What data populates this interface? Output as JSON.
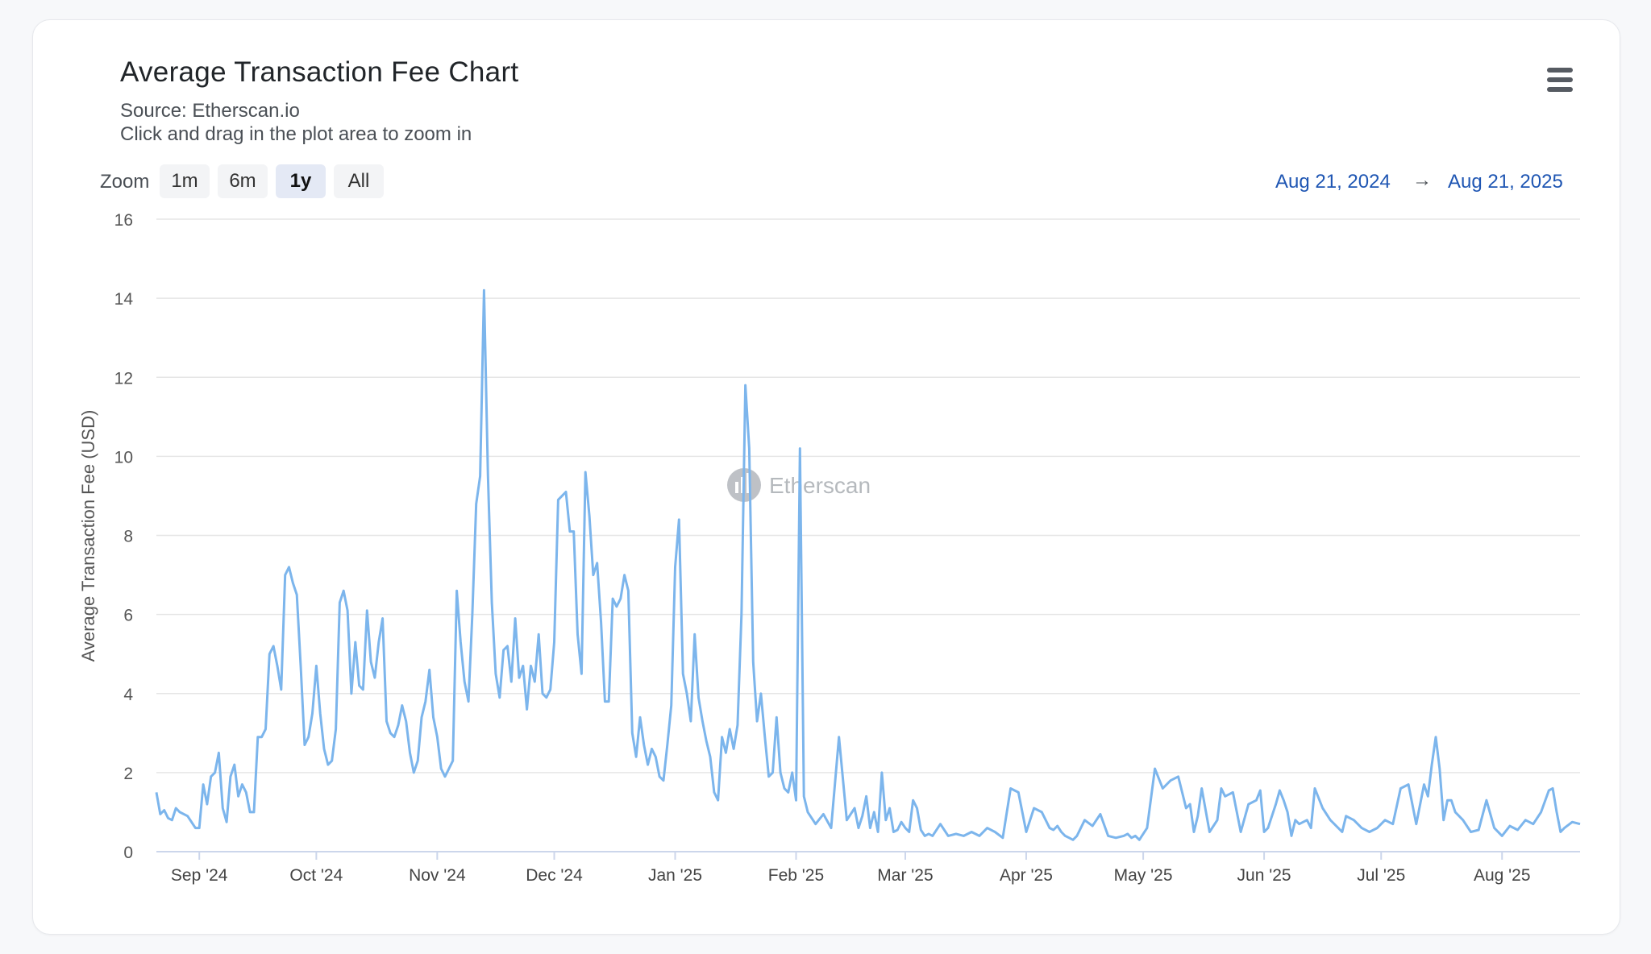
{
  "header": {
    "title": "Average Transaction Fee Chart",
    "source": "Source: Etherscan.io",
    "hint": "Click and drag in the plot area to zoom in"
  },
  "toolbar": {
    "menu_icon": "hamburger-menu-icon",
    "zoom_label": "Zoom",
    "zoom_buttons": [
      "1m",
      "6m",
      "1y",
      "All"
    ],
    "zoom_selected": "1y",
    "range_from": "Aug 21, 2024",
    "range_arrow": "→",
    "range_to": "Aug 21, 2025"
  },
  "watermark": {
    "text": "Etherscan",
    "icon": "etherscan-logo-icon"
  },
  "colors": {
    "line": "#7cb5ec",
    "accent": "#1f56b3",
    "grid": "#e6e6e6"
  },
  "chart_data": {
    "type": "line",
    "title": "Average Transaction Fee Chart",
    "subtitle": "Source: Etherscan.io",
    "xlabel": "",
    "ylabel": "Average Transaction Fee (USD)",
    "ylim": [
      0,
      16
    ],
    "yticks": [
      0,
      2,
      4,
      6,
      8,
      10,
      12,
      14,
      16
    ],
    "xlim": [
      "2024-08-21",
      "2025-08-21"
    ],
    "xticks": [
      {
        "date": "2024-09-01",
        "label": "Sep '24"
      },
      {
        "date": "2024-10-01",
        "label": "Oct '24"
      },
      {
        "date": "2024-11-01",
        "label": "Nov '24"
      },
      {
        "date": "2024-12-01",
        "label": "Dec '24"
      },
      {
        "date": "2025-01-01",
        "label": "Jan '25"
      },
      {
        "date": "2025-02-01",
        "label": "Feb '25"
      },
      {
        "date": "2025-03-01",
        "label": "Mar '25"
      },
      {
        "date": "2025-04-01",
        "label": "Apr '25"
      },
      {
        "date": "2025-05-01",
        "label": "May '25"
      },
      {
        "date": "2025-06-01",
        "label": "Jun '25"
      },
      {
        "date": "2025-07-01",
        "label": "Jul '25"
      },
      {
        "date": "2025-08-01",
        "label": "Aug '25"
      }
    ],
    "grid": true,
    "legend": "none",
    "series": [
      {
        "x": [
          "2024-08-21",
          "2024-08-22",
          "2024-08-23",
          "2024-08-24",
          "2024-08-25",
          "2024-08-26",
          "2024-08-27",
          "2024-08-29",
          "2024-08-31",
          "2024-09-01",
          "2024-09-02",
          "2024-09-03",
          "2024-09-04",
          "2024-09-05",
          "2024-09-06",
          "2024-09-07",
          "2024-09-08",
          "2024-09-09",
          "2024-09-10",
          "2024-09-11",
          "2024-09-12",
          "2024-09-13",
          "2024-09-14",
          "2024-09-15",
          "2024-09-16",
          "2024-09-17",
          "2024-09-18",
          "2024-09-19",
          "2024-09-20",
          "2024-09-21",
          "2024-09-22",
          "2024-09-23",
          "2024-09-24",
          "2024-09-25",
          "2024-09-26",
          "2024-09-27",
          "2024-09-28",
          "2024-09-29",
          "2024-09-30",
          "2024-10-01",
          "2024-10-02",
          "2024-10-03",
          "2024-10-04",
          "2024-10-05",
          "2024-10-06",
          "2024-10-07",
          "2024-10-08",
          "2024-10-09",
          "2024-10-10",
          "2024-10-11",
          "2024-10-12",
          "2024-10-13",
          "2024-10-14",
          "2024-10-15",
          "2024-10-16",
          "2024-10-17",
          "2024-10-18",
          "2024-10-19",
          "2024-10-20",
          "2024-10-21",
          "2024-10-22",
          "2024-10-23",
          "2024-10-24",
          "2024-10-25",
          "2024-10-26",
          "2024-10-27",
          "2024-10-28",
          "2024-10-29",
          "2024-10-30",
          "2024-10-31",
          "2024-11-01",
          "2024-11-02",
          "2024-11-03",
          "2024-11-04",
          "2024-11-05",
          "2024-11-06",
          "2024-11-07",
          "2024-11-08",
          "2024-11-09",
          "2024-11-10",
          "2024-11-11",
          "2024-11-12",
          "2024-11-13",
          "2024-11-14",
          "2024-11-15",
          "2024-11-16",
          "2024-11-17",
          "2024-11-18",
          "2024-11-19",
          "2024-11-20",
          "2024-11-21",
          "2024-11-22",
          "2024-11-23",
          "2024-11-24",
          "2024-11-25",
          "2024-11-26",
          "2024-11-27",
          "2024-11-28",
          "2024-11-29",
          "2024-11-30",
          "2024-12-01",
          "2024-12-02",
          "2024-12-03",
          "2024-12-04",
          "2024-12-05",
          "2024-12-06",
          "2024-12-07",
          "2024-12-08",
          "2024-12-09",
          "2024-12-10",
          "2024-12-11",
          "2024-12-12",
          "2024-12-13",
          "2024-12-14",
          "2024-12-15",
          "2024-12-16",
          "2024-12-17",
          "2024-12-18",
          "2024-12-19",
          "2024-12-20",
          "2024-12-21",
          "2024-12-22",
          "2024-12-23",
          "2024-12-24",
          "2024-12-25",
          "2024-12-26",
          "2024-12-27",
          "2024-12-28",
          "2024-12-29",
          "2024-12-30",
          "2024-12-31",
          "2025-01-01",
          "2025-01-02",
          "2025-01-03",
          "2025-01-04",
          "2025-01-05",
          "2025-01-06",
          "2025-01-07",
          "2025-01-08",
          "2025-01-09",
          "2025-01-10",
          "2025-01-11",
          "2025-01-12",
          "2025-01-13",
          "2025-01-14",
          "2025-01-15",
          "2025-01-16",
          "2025-01-17",
          "2025-01-18",
          "2025-01-19",
          "2025-01-20",
          "2025-01-21",
          "2025-01-22",
          "2025-01-23",
          "2025-01-24",
          "2025-01-25",
          "2025-01-26",
          "2025-01-27",
          "2025-01-28",
          "2025-01-29",
          "2025-01-30",
          "2025-01-31",
          "2025-02-01",
          "2025-02-02",
          "2025-02-03",
          "2025-02-04",
          "2025-02-06",
          "2025-02-08",
          "2025-02-10",
          "2025-02-12",
          "2025-02-14",
          "2025-02-16",
          "2025-02-17",
          "2025-02-18",
          "2025-02-19",
          "2025-02-20",
          "2025-02-21",
          "2025-02-22",
          "2025-02-23",
          "2025-02-24",
          "2025-02-25",
          "2025-02-26",
          "2025-02-27",
          "2025-02-28",
          "2025-03-01",
          "2025-03-02",
          "2025-03-03",
          "2025-03-04",
          "2025-03-05",
          "2025-03-06",
          "2025-03-07",
          "2025-03-08",
          "2025-03-10",
          "2025-03-12",
          "2025-03-14",
          "2025-03-16",
          "2025-03-18",
          "2025-03-20",
          "2025-03-22",
          "2025-03-24",
          "2025-03-26",
          "2025-03-28",
          "2025-03-30",
          "2025-04-01",
          "2025-04-03",
          "2025-04-05",
          "2025-04-07",
          "2025-04-08",
          "2025-04-09",
          "2025-04-10",
          "2025-04-11",
          "2025-04-12",
          "2025-04-13",
          "2025-04-14",
          "2025-04-16",
          "2025-04-18",
          "2025-04-20",
          "2025-04-22",
          "2025-04-24",
          "2025-04-26",
          "2025-04-27",
          "2025-04-28",
          "2025-04-29",
          "2025-04-30",
          "2025-05-02",
          "2025-05-04",
          "2025-05-06",
          "2025-05-08",
          "2025-05-10",
          "2025-05-12",
          "2025-05-13",
          "2025-05-14",
          "2025-05-15",
          "2025-05-16",
          "2025-05-18",
          "2025-05-20",
          "2025-05-21",
          "2025-05-22",
          "2025-05-24",
          "2025-05-26",
          "2025-05-28",
          "2025-05-30",
          "2025-05-31",
          "2025-06-01",
          "2025-06-02",
          "2025-06-04",
          "2025-06-05",
          "2025-06-06",
          "2025-06-07",
          "2025-06-08",
          "2025-06-09",
          "2025-06-10",
          "2025-06-12",
          "2025-06-13",
          "2025-06-14",
          "2025-06-16",
          "2025-06-18",
          "2025-06-20",
          "2025-06-21",
          "2025-06-22",
          "2025-06-24",
          "2025-06-26",
          "2025-06-28",
          "2025-06-30",
          "2025-07-02",
          "2025-07-04",
          "2025-07-06",
          "2025-07-08",
          "2025-07-10",
          "2025-07-12",
          "2025-07-13",
          "2025-07-14",
          "2025-07-15",
          "2025-07-16",
          "2025-07-17",
          "2025-07-18",
          "2025-07-19",
          "2025-07-20",
          "2025-07-22",
          "2025-07-24",
          "2025-07-26",
          "2025-07-28",
          "2025-07-30",
          "2025-08-01",
          "2025-08-03",
          "2025-08-05",
          "2025-08-07",
          "2025-08-09",
          "2025-08-11",
          "2025-08-13",
          "2025-08-14",
          "2025-08-15",
          "2025-08-16",
          "2025-08-17",
          "2025-08-19",
          "2025-08-21"
        ],
        "values": [
          1.5,
          0.95,
          1.05,
          0.85,
          0.8,
          1.1,
          1.0,
          0.9,
          0.6,
          0.6,
          1.7,
          1.2,
          1.9,
          2.0,
          2.5,
          1.1,
          0.75,
          1.9,
          2.2,
          1.4,
          1.7,
          1.5,
          1.0,
          1.0,
          2.9,
          2.9,
          3.1,
          5.0,
          5.2,
          4.7,
          4.1,
          7.0,
          7.2,
          6.8,
          6.5,
          4.7,
          2.7,
          2.9,
          3.5,
          4.7,
          3.5,
          2.6,
          2.2,
          2.3,
          3.1,
          6.3,
          6.6,
          6.1,
          4.0,
          5.3,
          4.2,
          4.1,
          6.1,
          4.8,
          4.4,
          5.3,
          5.9,
          3.3,
          3.0,
          2.9,
          3.2,
          3.7,
          3.3,
          2.5,
          2.0,
          2.3,
          3.4,
          3.8,
          4.6,
          3.4,
          2.9,
          2.1,
          1.9,
          2.1,
          2.3,
          6.6,
          5.3,
          4.3,
          3.8,
          6.0,
          8.8,
          9.5,
          14.2,
          9.5,
          6.3,
          4.5,
          3.9,
          5.1,
          5.2,
          4.3,
          5.9,
          4.4,
          4.7,
          3.6,
          4.7,
          4.3,
          5.5,
          4.0,
          3.9,
          4.1,
          5.3,
          8.9,
          9.0,
          9.1,
          8.1,
          8.1,
          5.5,
          4.5,
          9.6,
          8.5,
          7.0,
          7.3,
          5.8,
          3.8,
          3.8,
          6.4,
          6.2,
          6.4,
          7.0,
          6.6,
          3.0,
          2.4,
          3.4,
          2.7,
          2.2,
          2.6,
          2.4,
          1.9,
          1.8,
          2.7,
          3.7,
          7.2,
          8.4,
          4.5,
          4.0,
          3.3,
          5.5,
          3.9,
          3.3,
          2.8,
          2.4,
          1.5,
          1.3,
          2.9,
          2.5,
          3.1,
          2.6,
          3.2,
          6.0,
          11.8,
          10.2,
          4.8,
          3.3,
          4.0,
          2.9,
          1.9,
          2.0,
          3.4,
          2.0,
          1.6,
          1.5,
          2.0,
          1.3,
          10.2,
          1.4,
          1.0,
          0.7,
          0.95,
          0.6,
          2.9,
          0.8,
          1.1,
          0.6,
          0.9,
          1.4,
          0.6,
          1.0,
          0.5,
          2.0,
          0.8,
          1.1,
          0.5,
          0.55,
          0.75,
          0.6,
          0.5,
          1.3,
          1.1,
          0.55,
          0.4,
          0.45,
          0.4,
          0.7,
          0.4,
          0.45,
          0.4,
          0.5,
          0.4,
          0.6,
          0.5,
          0.35,
          1.6,
          1.5,
          0.5,
          1.1,
          1.0,
          0.6,
          0.55,
          0.65,
          0.5,
          0.4,
          0.35,
          0.3,
          0.4,
          0.8,
          0.65,
          0.95,
          0.4,
          0.35,
          0.4,
          0.45,
          0.35,
          0.4,
          0.3,
          0.6,
          2.1,
          1.6,
          1.8,
          1.9,
          1.1,
          1.2,
          0.5,
          0.9,
          1.6,
          0.5,
          0.8,
          1.6,
          1.4,
          1.5,
          0.5,
          1.2,
          1.3,
          1.55,
          0.5,
          0.6,
          1.2,
          1.55,
          1.3,
          1.0,
          0.4,
          0.8,
          0.7,
          0.8,
          0.6,
          1.6,
          1.1,
          0.8,
          0.6,
          0.5,
          0.9,
          0.8,
          0.6,
          0.5,
          0.6,
          0.8,
          0.7,
          1.6,
          1.7,
          0.7,
          1.7,
          1.4,
          2.2,
          2.9,
          2.1,
          0.8,
          1.3,
          1.3,
          1.0,
          0.8,
          0.5,
          0.55,
          1.3,
          0.6,
          0.4,
          0.65,
          0.55,
          0.8,
          0.7,
          1.0,
          1.55,
          1.6,
          1.0,
          0.5,
          0.6,
          0.75,
          0.7
        ]
      }
    ]
  }
}
